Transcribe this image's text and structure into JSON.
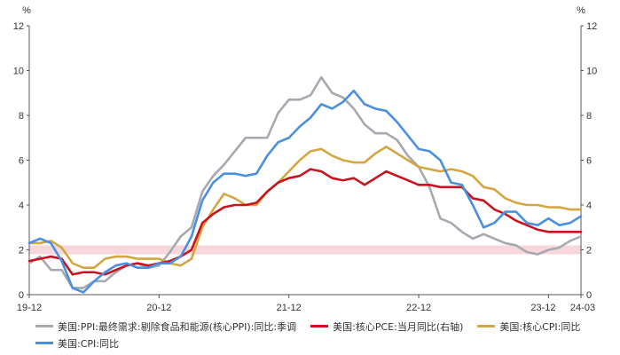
{
  "chart_data": {
    "type": "line",
    "title": "",
    "left_unit": "%",
    "right_unit": "%",
    "ylim": [
      0,
      12
    ],
    "yticks": [
      "0",
      "2",
      "4",
      "6",
      "8",
      "10",
      "12"
    ],
    "right_yticks": [
      "0",
      "2",
      "4",
      "6",
      "8",
      "10",
      "12"
    ],
    "x_start": 0,
    "x_end": 51,
    "xtick_labels": [
      {
        "label": "19-12",
        "pos": 0
      },
      {
        "label": "20-12",
        "pos": 12
      },
      {
        "label": "21-12",
        "pos": 24
      },
      {
        "label": "22-12",
        "pos": 36
      },
      {
        "label": "23-12",
        "pos": 48
      },
      {
        "label": "24-03",
        "pos": 51
      }
    ],
    "reference_band": {
      "from": 1.8,
      "to": 2.2,
      "color": "#f4c6cc"
    },
    "series": [
      {
        "name": "美国:PPI:最终需求:剔除食品和能源(核心PPI):同比:季调",
        "color": "#a6a9b0",
        "axis": "left",
        "values": [
          1.4,
          1.7,
          1.1,
          1.1,
          0.3,
          0.3,
          0.6,
          0.6,
          1.0,
          1.3,
          1.4,
          1.2,
          1.3,
          1.9,
          2.6,
          3.0,
          4.6,
          5.3,
          5.8,
          6.4,
          7.0,
          7.0,
          7.0,
          8.1,
          8.7,
          8.7,
          8.9,
          9.7,
          9.0,
          8.8,
          8.3,
          7.6,
          7.2,
          7.2,
          6.9,
          6.2,
          5.7,
          4.8,
          3.4,
          3.2,
          2.8,
          2.5,
          2.7,
          2.5,
          2.3,
          2.2,
          1.9,
          1.8,
          2.0,
          2.1,
          2.4,
          2.6
        ]
      },
      {
        "name": "美国:核心PCE:当月同比(右轴)",
        "color": "#c8141e",
        "axis": "right",
        "values": [
          1.5,
          1.6,
          1.7,
          1.6,
          0.9,
          1.0,
          1.0,
          0.9,
          1.1,
          1.3,
          1.4,
          1.3,
          1.4,
          1.5,
          1.7,
          2.0,
          3.2,
          3.6,
          3.9,
          4.0,
          4.0,
          4.1,
          4.6,
          5.0,
          5.2,
          5.3,
          5.6,
          5.5,
          5.2,
          5.1,
          5.2,
          4.9,
          5.2,
          5.5,
          5.3,
          5.1,
          4.9,
          4.9,
          4.8,
          4.8,
          4.8,
          4.3,
          4.2,
          3.8,
          3.6,
          3.3,
          3.1,
          2.9,
          2.8,
          2.8,
          2.8,
          2.8
        ]
      },
      {
        "name": "美国:核心CPI:同比",
        "color": "#d4a640",
        "axis": "left",
        "values": [
          2.3,
          2.3,
          2.4,
          2.1,
          1.4,
          1.2,
          1.2,
          1.6,
          1.7,
          1.7,
          1.6,
          1.6,
          1.6,
          1.4,
          1.3,
          1.6,
          3.0,
          3.8,
          4.5,
          4.3,
          4.0,
          4.0,
          4.6,
          5.0,
          5.5,
          6.0,
          6.4,
          6.5,
          6.2,
          6.0,
          5.9,
          5.9,
          6.3,
          6.6,
          6.3,
          6.0,
          5.7,
          5.6,
          5.5,
          5.6,
          5.5,
          5.3,
          4.8,
          4.7,
          4.3,
          4.1,
          4.0,
          4.0,
          3.9,
          3.9,
          3.8,
          3.8
        ]
      },
      {
        "name": "美国:CPI:同比",
        "color": "#4a8fe0",
        "axis": "left",
        "values": [
          2.3,
          2.5,
          2.3,
          1.5,
          0.3,
          0.1,
          0.6,
          1.0,
          1.3,
          1.4,
          1.2,
          1.2,
          1.4,
          1.4,
          1.7,
          2.6,
          4.2,
          5.0,
          5.4,
          5.4,
          5.3,
          5.4,
          6.2,
          6.8,
          7.0,
          7.5,
          7.9,
          8.5,
          8.3,
          8.6,
          9.1,
          8.5,
          8.3,
          8.2,
          7.7,
          7.1,
          6.5,
          6.4,
          6.0,
          5.0,
          4.9,
          4.0,
          3.0,
          3.2,
          3.7,
          3.7,
          3.2,
          3.1,
          3.4,
          3.1,
          3.2,
          3.5
        ]
      }
    ]
  },
  "legend": {
    "row1": [
      {
        "label": "美国:PPI:最终需求:剔除食品和能源(核心PPI):同比:季调",
        "color": "#a6a9b0"
      },
      {
        "label": "美国:核心PCE:当月同比(右轴)",
        "color": "#c8141e"
      },
      {
        "label": "美国:核心CPI:同比",
        "color": "#d4a640"
      }
    ],
    "row2": [
      {
        "label": "美国:CPI:同比",
        "color": "#4a8fe0"
      }
    ]
  }
}
